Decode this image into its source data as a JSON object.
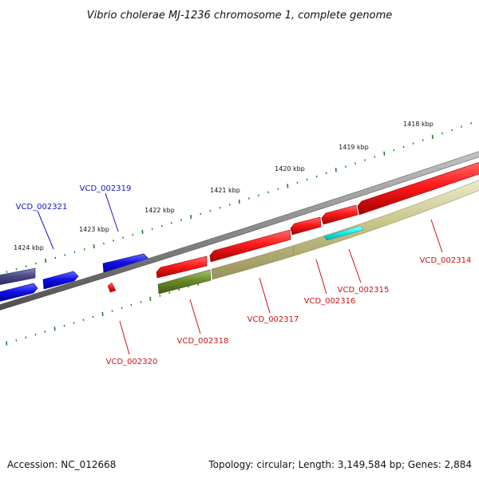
{
  "title": "Vibrio cholerae MJ-1236 chromosome 1, complete genome",
  "footer": {
    "accession": "Accession: NC_012668",
    "stats": "Topology: circular; Length: 3,149,584 bp; Genes: 2,884"
  },
  "colors": {
    "backbone": "#8a8a8a",
    "tick_green": "#1e7d1e",
    "blue": "#1010e0",
    "navy": "#4a4a8a",
    "red": "#e81010",
    "khaki": "#c8c488",
    "olive": "#6a8a2a",
    "cyan": "#12f2f2",
    "label_blue": "#1515cc",
    "label_red": "#cc1111"
  },
  "kbp_labels": [
    "1418 kbp",
    "1419 kbp",
    "1420 kbp",
    "1421 kbp",
    "1422 kbp",
    "1423 kbp",
    "1424 kbp"
  ],
  "genes": [
    {
      "name": "VCD_002314",
      "color": "red"
    },
    {
      "name": "VCD_002315",
      "color": "red"
    },
    {
      "name": "VCD_002316",
      "color": "red"
    },
    {
      "name": "VCD_002317",
      "color": "red"
    },
    {
      "name": "VCD_002318",
      "color": "red"
    },
    {
      "name": "VCD_002319",
      "color": "blue"
    },
    {
      "name": "VCD_002320",
      "color": "red"
    },
    {
      "name": "VCD_002321",
      "color": "blue"
    }
  ]
}
